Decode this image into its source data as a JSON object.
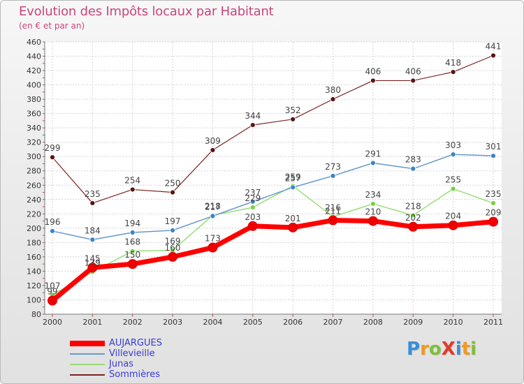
{
  "title": "Evolution des Impôts locaux par Habitant",
  "subtitle": "(en € et par an)",
  "brand": {
    "text": "ProXiti",
    "letters": [
      {
        "ch": "P",
        "color": "#3a8fd6"
      },
      {
        "ch": "r",
        "color": "#f29a1e"
      },
      {
        "ch": "o",
        "color": "#7fbf3a"
      },
      {
        "ch": "X",
        "color": "#e23a2a"
      },
      {
        "ch": "i",
        "color": "#3a8fd6"
      },
      {
        "ch": "t",
        "color": "#f29a1e"
      },
      {
        "ch": "i",
        "color": "#7fbf3a"
      }
    ]
  },
  "chart_data": {
    "type": "line",
    "title": "Evolution des Impôts locaux par Habitant",
    "subtitle": "(en € et par an)",
    "x": [
      "2000",
      "2001",
      "2002",
      "2003",
      "2004",
      "2005",
      "2006",
      "2007",
      "2008",
      "2009",
      "2010",
      "2011"
    ],
    "ylim": [
      80,
      460
    ],
    "yticks": [
      80,
      100,
      120,
      140,
      160,
      180,
      200,
      220,
      240,
      260,
      280,
      300,
      320,
      340,
      360,
      380,
      400,
      420,
      440,
      460
    ],
    "grid": true,
    "legend_position": "bottom-left",
    "series": [
      {
        "name": "AUJARGUES",
        "values": [
          99,
          145,
          150,
          160,
          173,
          203,
          201,
          211,
          210,
          202,
          204,
          209
        ],
        "color": "#ff0000",
        "marker": "#ee0000",
        "width": 7
      },
      {
        "name": "Villevieille",
        "values": [
          196,
          184,
          194,
          197,
          217,
          237,
          257,
          273,
          291,
          283,
          303,
          301
        ],
        "color": "#6699cc",
        "marker": "#3d84c8",
        "width": 1.5
      },
      {
        "name": "Junas",
        "values": [
          107,
          139,
          168,
          169,
          218,
          229,
          259,
          216,
          234,
          218,
          255,
          235
        ],
        "color": "#99dd77",
        "marker": "#77d144",
        "width": 1.5
      },
      {
        "name": "Sommières",
        "values": [
          299,
          235,
          254,
          250,
          309,
          344,
          352,
          380,
          406,
          406,
          418,
          441
        ],
        "color": "#7a2222",
        "marker": "#5a1515",
        "width": 1.2
      }
    ]
  }
}
